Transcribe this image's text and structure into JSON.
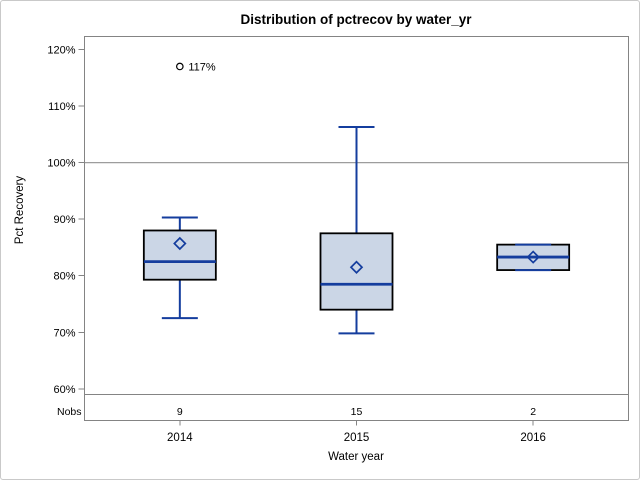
{
  "chart_data": {
    "type": "boxplot",
    "title": "Distribution of pctrecov by water_yr",
    "xlabel": "Water year",
    "ylabel": "Pct Recovery",
    "ylim": [
      59.0,
      122.3
    ],
    "grid": false,
    "legend": null,
    "reference_line_y": 100,
    "y_ticks": [
      {
        "value": 120,
        "label": "120%"
      },
      {
        "value": 110,
        "label": "110%"
      },
      {
        "value": 100,
        "label": "100%"
      },
      {
        "value": 90,
        "label": "90%"
      },
      {
        "value": 80,
        "label": "80%"
      },
      {
        "value": 70,
        "label": "70%"
      },
      {
        "value": 60,
        "label": "60%"
      }
    ],
    "nobs_row_label": "Nobs",
    "categories": [
      "2014",
      "2015",
      "2016"
    ],
    "series": [
      {
        "category": "2014",
        "nobs": "9",
        "whisker_low": 72.5,
        "q1": 79.3,
        "median": 82.5,
        "q3": 88.0,
        "whisker_high": 90.3,
        "mean": 85.7,
        "outliers": [
          {
            "value": 117,
            "label": "117%"
          }
        ]
      },
      {
        "category": "2015",
        "nobs": "15",
        "whisker_low": 69.8,
        "q1": 74.0,
        "median": 78.5,
        "q3": 87.5,
        "whisker_high": 106.3,
        "mean": 81.5,
        "outliers": []
      },
      {
        "category": "2016",
        "nobs": "2",
        "whisker_low": 81.0,
        "q1": 81.0,
        "median": 83.3,
        "q3": 85.5,
        "whisker_high": 85.5,
        "mean": 83.3,
        "outliers": []
      }
    ],
    "colors": {
      "box_fill": "#CBD6E6",
      "box_border": "#000000",
      "box_line": "#143D9E",
      "outlier": "#000000",
      "axis": "#848484",
      "reference": "#9D9D9D",
      "text": "#000000",
      "background": "#FFFFFF",
      "frame_border": "#C9C9C9"
    }
  }
}
